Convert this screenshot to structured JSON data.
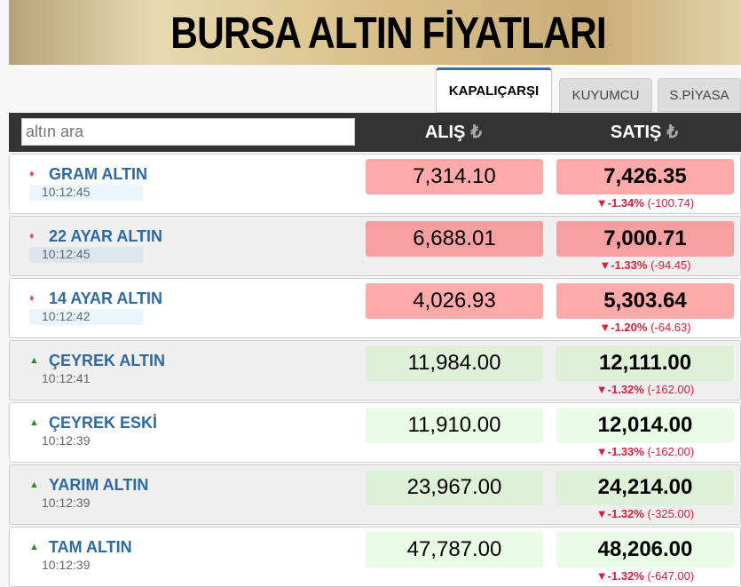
{
  "banner_title": "BURSA ALTIN FİYATLARI",
  "tabs": [
    "KAPALIÇARŞI",
    "KUYUMCU",
    "S.PİYASA"
  ],
  "search": {
    "placeholder": "altın ara"
  },
  "header": {
    "alis": "ALIŞ",
    "satis": "SATIŞ",
    "currency": "₺"
  },
  "colors": {
    "down_bg": "#ffaaaa",
    "down_bg_dark": "#f4a0a0",
    "up_bg": "#dff0d8",
    "up_bg_light": "#eafbe6",
    "up_arrow": "#2e8b2e",
    "down_arrow": "#e05060",
    "change": "#d0203a"
  },
  "rows": [
    {
      "name": "GRAM ALTIN",
      "time": "10:12:45",
      "alis": "7,314.10",
      "satis": "7,426.35",
      "pct": "▼-1.34%",
      "diff": "(-100.74)",
      "trend": "down"
    },
    {
      "name": "22 AYAR ALTIN",
      "time": "10:12:45",
      "alis": "6,688.01",
      "satis": "7,000.71",
      "pct": "▼-1.33%",
      "diff": "(-94.45)",
      "trend": "down"
    },
    {
      "name": "14 AYAR ALTIN",
      "time": "10:12:42",
      "alis": "4,026.93",
      "satis": "5,303.64",
      "pct": "▼-1.20%",
      "diff": "(-64.63)",
      "trend": "down"
    },
    {
      "name": "ÇEYREK ALTIN",
      "time": "10:12:41",
      "alis": "11,984.00",
      "satis": "12,111.00",
      "pct": "▼-1.32%",
      "diff": "(-162.00)",
      "trend": "up"
    },
    {
      "name": "ÇEYREK ESKİ",
      "time": "10:12:39",
      "alis": "11,910.00",
      "satis": "12,014.00",
      "pct": "▼-1.33%",
      "diff": "(-162.00)",
      "trend": "up"
    },
    {
      "name": "YARIM ALTIN",
      "time": "10:12:39",
      "alis": "23,967.00",
      "satis": "24,214.00",
      "pct": "▼-1.32%",
      "diff": "(-325.00)",
      "trend": "up"
    },
    {
      "name": "TAM ALTIN",
      "time": "10:12:39",
      "alis": "47,787.00",
      "satis": "48,206.00",
      "pct": "▼-1.32%",
      "diff": "(-647.00)",
      "trend": "up"
    }
  ]
}
